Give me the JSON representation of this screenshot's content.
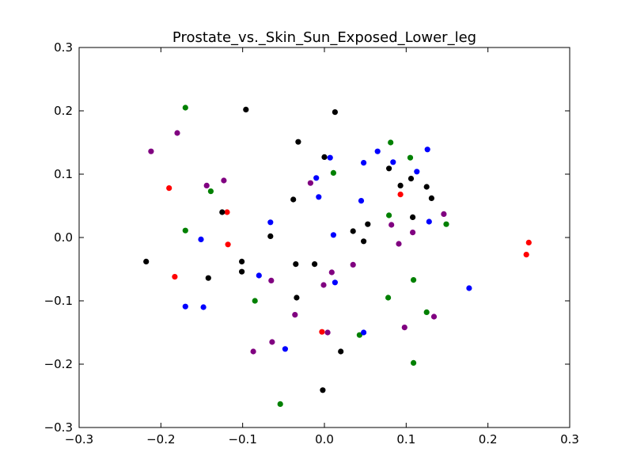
{
  "chart_data": {
    "type": "scatter",
    "title": "Prostate_vs._Skin_Sun_Exposed_Lower_leg",
    "xlabel": "",
    "ylabel": "",
    "xlim": [
      -0.3,
      0.3
    ],
    "ylim": [
      -0.3,
      0.3
    ],
    "x_ticks": [
      "−0.3",
      "−0.2",
      "−0.1",
      "0.0",
      "0.1",
      "0.2",
      "0.3"
    ],
    "y_ticks": [
      "−0.3",
      "−0.2",
      "−0.1",
      "0.0",
      "0.1",
      "0.2",
      "0.3"
    ],
    "grid": false,
    "legend": "none",
    "series": [
      {
        "color": "#ff0000",
        "points": [
          [
            -0.19,
            0.078
          ],
          [
            -0.119,
            0.04
          ],
          [
            -0.118,
            -0.011
          ],
          [
            -0.183,
            -0.062
          ],
          [
            0.093,
            0.068
          ],
          [
            -0.003,
            -0.149
          ],
          [
            0.25,
            -0.008
          ],
          [
            0.247,
            -0.027
          ]
        ]
      },
      {
        "color": "#008000",
        "points": [
          [
            -0.17,
            0.205
          ],
          [
            -0.139,
            0.073
          ],
          [
            -0.17,
            0.011
          ],
          [
            -0.085,
            -0.1
          ],
          [
            0.011,
            0.102
          ],
          [
            0.081,
            0.15
          ],
          [
            0.105,
            0.126
          ],
          [
            0.079,
            0.035
          ],
          [
            0.149,
            0.021
          ],
          [
            0.109,
            -0.067
          ],
          [
            0.078,
            -0.095
          ],
          [
            0.125,
            -0.118
          ],
          [
            0.043,
            -0.154
          ],
          [
            0.109,
            -0.198
          ],
          [
            -0.054,
            -0.263
          ]
        ]
      },
      {
        "color": "#0000ff",
        "points": [
          [
            0.007,
            0.126
          ],
          [
            0.048,
            0.118
          ],
          [
            0.065,
            0.136
          ],
          [
            0.084,
            0.119
          ],
          [
            0.126,
            0.139
          ],
          [
            0.113,
            0.104
          ],
          [
            -0.01,
            0.094
          ],
          [
            -0.007,
            0.064
          ],
          [
            0.045,
            0.058
          ],
          [
            -0.066,
            0.024
          ],
          [
            0.128,
            0.025
          ],
          [
            0.011,
            0.004
          ],
          [
            -0.151,
            -0.003
          ],
          [
            -0.08,
            -0.06
          ],
          [
            0.013,
            -0.071
          ],
          [
            -0.17,
            -0.109
          ],
          [
            -0.148,
            -0.11
          ],
          [
            -0.048,
            -0.176
          ],
          [
            0.048,
            -0.15
          ],
          [
            0.177,
            -0.08
          ]
        ]
      },
      {
        "color": "#800080",
        "points": [
          [
            -0.212,
            0.136
          ],
          [
            -0.18,
            0.165
          ],
          [
            -0.144,
            0.082
          ],
          [
            -0.123,
            0.09
          ],
          [
            -0.017,
            0.086
          ],
          [
            0.146,
            0.037
          ],
          [
            0.082,
            0.02
          ],
          [
            0.108,
            0.008
          ],
          [
            0.091,
            -0.01
          ],
          [
            0.035,
            -0.043
          ],
          [
            0.009,
            -0.055
          ],
          [
            -0.001,
            -0.075
          ],
          [
            -0.065,
            -0.068
          ],
          [
            -0.036,
            -0.122
          ],
          [
            0.098,
            -0.142
          ],
          [
            0.134,
            -0.125
          ],
          [
            0.004,
            -0.15
          ],
          [
            -0.064,
            -0.165
          ],
          [
            -0.087,
            -0.18
          ]
        ]
      },
      {
        "color": "#000000",
        "points": [
          [
            -0.096,
            0.202
          ],
          [
            0.013,
            0.198
          ],
          [
            -0.032,
            0.151
          ],
          [
            0.0,
            0.127
          ],
          [
            0.079,
            0.109
          ],
          [
            0.106,
            0.093
          ],
          [
            0.093,
            0.082
          ],
          [
            0.125,
            0.08
          ],
          [
            0.131,
            0.062
          ],
          [
            -0.038,
            0.06
          ],
          [
            -0.125,
            0.04
          ],
          [
            0.108,
            0.032
          ],
          [
            0.053,
            0.021
          ],
          [
            0.035,
            0.01
          ],
          [
            -0.066,
            0.002
          ],
          [
            0.048,
            -0.006
          ],
          [
            -0.218,
            -0.038
          ],
          [
            -0.101,
            -0.038
          ],
          [
            -0.035,
            -0.042
          ],
          [
            -0.012,
            -0.042
          ],
          [
            -0.101,
            -0.054
          ],
          [
            -0.142,
            -0.064
          ],
          [
            -0.034,
            -0.095
          ],
          [
            0.02,
            -0.18
          ],
          [
            -0.002,
            -0.241
          ]
        ]
      }
    ]
  }
}
